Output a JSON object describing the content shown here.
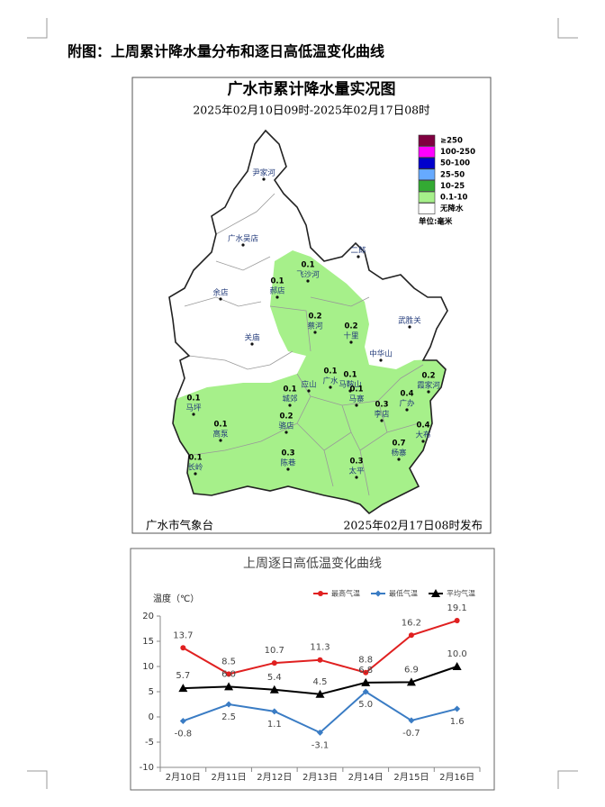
{
  "heading": "附图：上周累计降水量分布和逐日高低温变化曲线",
  "map": {
    "title": "广水市累计降水量实况图",
    "subtitle": "2025年02月10日09时-2025年02月17日08时",
    "legend": [
      {
        "label": "≥250",
        "color": "#800040"
      },
      {
        "label": "100-250",
        "color": "#ff00ff"
      },
      {
        "label": "50-100",
        "color": "#0000cc"
      },
      {
        "label": "25-50",
        "color": "#66aaff"
      },
      {
        "label": "10-25",
        "color": "#33aa33"
      },
      {
        "label": "0.1-10",
        "color": "#a6f08a"
      },
      {
        "label": "无降水",
        "color": "#ffffff"
      }
    ],
    "unit": "单位:毫米",
    "places": [
      {
        "name": "尹家河"
      },
      {
        "name": "广水吴店"
      },
      {
        "name": "余店"
      },
      {
        "name": "关庙"
      },
      {
        "name": "郝店",
        "value": 0.1
      },
      {
        "name": "飞沙河",
        "value": 0.1
      },
      {
        "name": "蔡河",
        "value": 0.2
      },
      {
        "name": "十里",
        "value": 0.2
      },
      {
        "name": "二郎"
      },
      {
        "name": "武胜关"
      },
      {
        "name": "中华山"
      },
      {
        "name": "应山"
      },
      {
        "name": "广水",
        "value": 0.1
      },
      {
        "name": "马鞍山",
        "value": 0.1
      },
      {
        "name": "马寨",
        "value": 0.1
      },
      {
        "name": "城郊",
        "value": 0.1
      },
      {
        "name": "李店",
        "value": 0.3
      },
      {
        "name": "广办",
        "value": 0.4
      },
      {
        "name": "霞家河",
        "value": 0.2
      },
      {
        "name": "骆店",
        "value": 0.2
      },
      {
        "name": "马坪",
        "value": 0.1
      },
      {
        "name": "高泵",
        "value": 0.1
      },
      {
        "name": "大布",
        "value": 0.4
      },
      {
        "name": "杨寨",
        "value": 0.7
      },
      {
        "name": "陈巷",
        "value": 0.3
      },
      {
        "name": "太平",
        "value": 0.3
      },
      {
        "name": "长岭",
        "value": 0.1
      }
    ],
    "footer_left": "广水市气象台",
    "footer_right": "2025年02月17日08时发布"
  },
  "chart_data": {
    "type": "line",
    "title": "上周逐日高低温变化曲线",
    "y_label": "温度（℃）",
    "categories": [
      "2月10日",
      "2月11日",
      "2月12日",
      "2月13日",
      "2月14日",
      "2月15日",
      "2月16日"
    ],
    "series": [
      {
        "name": "最高气温",
        "color": "#e02020",
        "marker": "circle",
        "values": [
          13.7,
          8.5,
          10.7,
          11.3,
          8.8,
          16.2,
          19.1
        ]
      },
      {
        "name": "最低气温",
        "color": "#3a7cc4",
        "marker": "diamond",
        "values": [
          -0.8,
          2.5,
          1.1,
          -3.1,
          5.0,
          -0.7,
          1.6
        ],
        "value_labels": [
          "-0.8",
          "2.5",
          "1.1",
          "-3.1",
          "5.0",
          "-0.7",
          "1.6"
        ]
      },
      {
        "name": "平均气温",
        "color": "#000000",
        "marker": "triangle",
        "values": [
          5.7,
          6.0,
          5.4,
          4.5,
          6.8,
          6.9,
          10.0
        ],
        "value_labels": [
          "5.7",
          "6.0",
          "5.4",
          "4.5",
          "6.8",
          "6.9",
          "10.0"
        ]
      }
    ],
    "ylim": [
      -10,
      20
    ],
    "yticks": [
      -10,
      -5,
      0,
      5,
      10,
      15,
      20
    ],
    "grid": false,
    "legend": "top-right"
  }
}
